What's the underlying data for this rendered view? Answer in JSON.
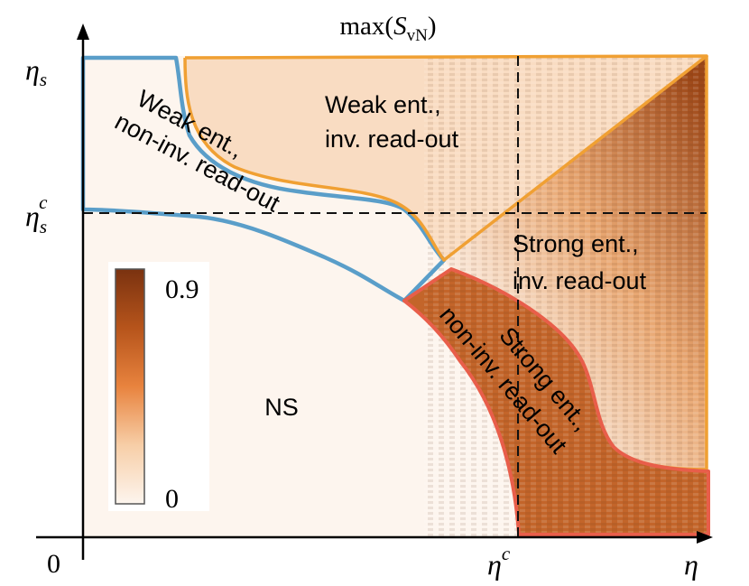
{
  "chart_data": {
    "type": "heatmap",
    "title": "max(S_vN)",
    "title_parts": {
      "base": "max(",
      "symbol": "S",
      "subscript": "vN",
      "close": ")"
    },
    "x_axis": {
      "symbol": "η",
      "origin_label": "0",
      "critical_tick": {
        "symbol": "η",
        "superscript": "c",
        "position_fraction": 0.705
      }
    },
    "y_axis": {
      "symbol": "η",
      "subscript": "s",
      "critical_tick": {
        "symbol": "η",
        "subscript": "s",
        "superscript": "c",
        "position_fraction": 0.675
      }
    },
    "colorbar": {
      "max_label": "0.9",
      "min_label": "0",
      "range": [
        0,
        0.9
      ],
      "colors": [
        "#fdf5ee",
        "#f7cea7",
        "#e8833e",
        "#b6541b",
        "#7a3210"
      ]
    },
    "regions": [
      {
        "name": "NS",
        "label": "NS",
        "mean_value": 0.02,
        "border": "none"
      },
      {
        "name": "weak-non-inv",
        "label_lines": [
          "Weak ent.,",
          "non-inv. read-out"
        ],
        "mean_value": 0.08,
        "border": "#5a9ec9"
      },
      {
        "name": "weak-inv",
        "label_lines": [
          "Weak ent.,",
          "inv. read-out"
        ],
        "mean_value": 0.2,
        "border": "#f0a033"
      },
      {
        "name": "strong-inv",
        "label_lines": [
          "Strong ent.,",
          "inv. read-out"
        ],
        "mean_value": 0.65,
        "border": "#f0a033"
      },
      {
        "name": "strong-non-inv",
        "label_lines": [
          "Strong ent.,",
          "non-inv. read-out"
        ],
        "mean_value": 0.6,
        "border": "#e85e4a"
      }
    ],
    "dashed_lines": [
      "x = η^c",
      "y = η_s^c"
    ],
    "grid": false,
    "legend": "colorbar inside plot, lower-left"
  }
}
